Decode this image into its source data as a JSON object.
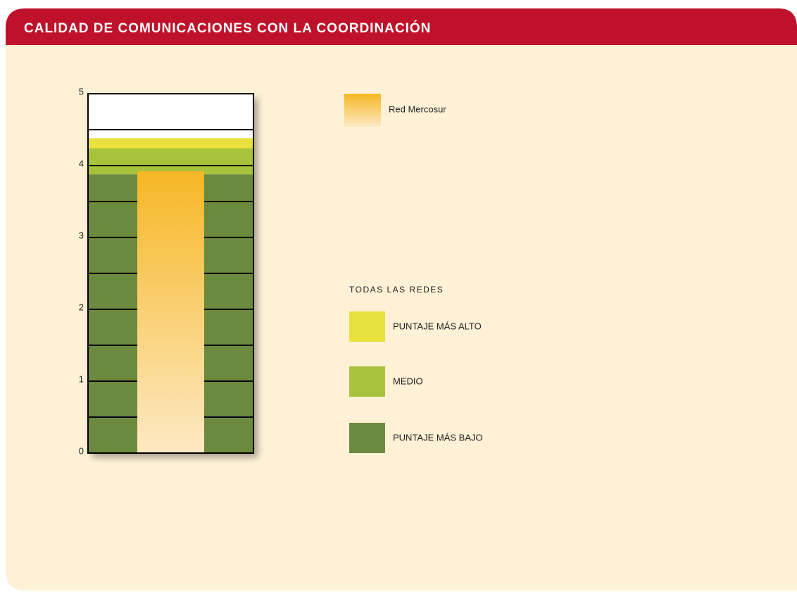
{
  "chart_data": {
    "type": "bar",
    "title": "CALIDAD DE COMUNICACIONES CON LA COORDINACIÓN",
    "ylim": [
      0,
      5
    ],
    "yticks": [
      0,
      1,
      2,
      3,
      4,
      5
    ],
    "grid_lines": [
      0.5,
      1,
      1.5,
      2,
      2.5,
      3,
      3.5,
      4,
      4.5
    ],
    "series": [
      {
        "name": "Red Mercosur",
        "color": [
          "#f6b724",
          "#fde9c4"
        ],
        "value": 3.92
      }
    ],
    "reference_title": "TODAS LAS REDES",
    "bands": [
      {
        "name": "PUNTAJE MÁS ALTO",
        "color": "#e9e13d",
        "value": 0.14
      },
      {
        "name": "MEDIO",
        "color": "#a6c33b",
        "value": 0.36
      },
      {
        "name": "PUNTAJE MÁS BAJO",
        "color": "#6c8a3e",
        "value": 3.88
      }
    ]
  }
}
